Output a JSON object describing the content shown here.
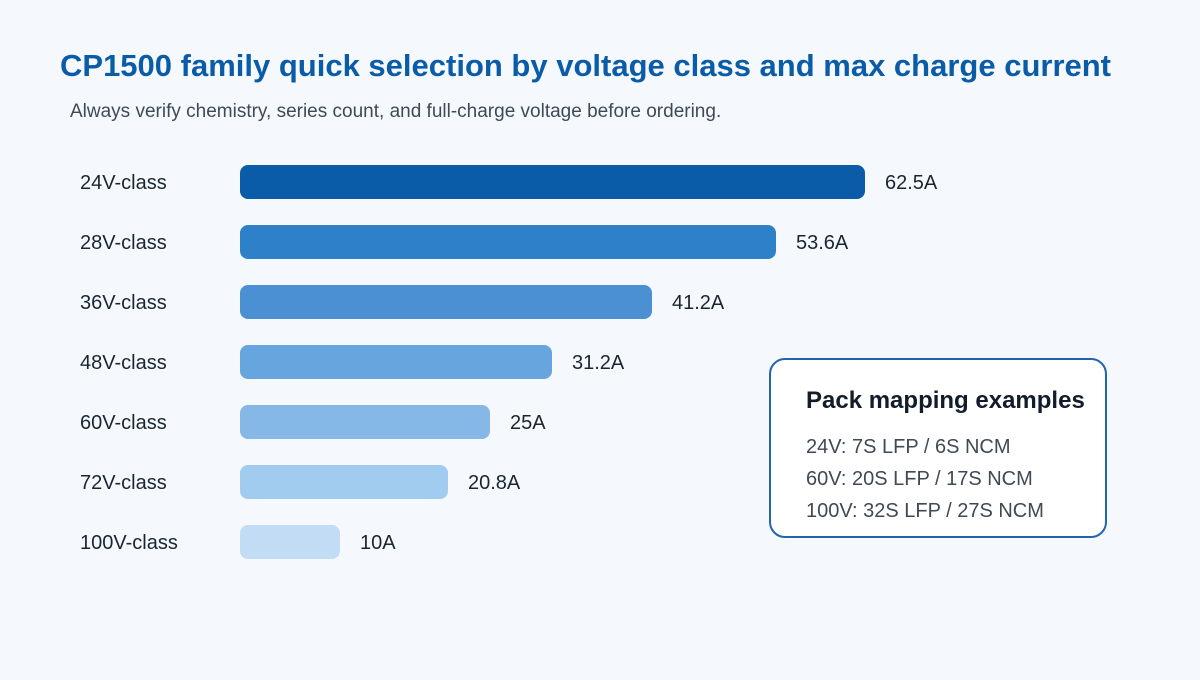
{
  "title": "CP1500 family quick selection by voltage class and max charge current",
  "subtitle": "Always verify chemistry, series count, and full-charge voltage before ordering.",
  "chart_data": {
    "type": "bar",
    "orientation": "horizontal",
    "categories": [
      "24V-class",
      "28V-class",
      "36V-class",
      "48V-class",
      "60V-class",
      "72V-class",
      "100V-class"
    ],
    "values": [
      62.5,
      53.6,
      41.2,
      31.2,
      25,
      20.8,
      10
    ],
    "value_labels": [
      "62.5A",
      "53.6A",
      "41.2A",
      "31.2A",
      "25A",
      "20.8A",
      "10A"
    ],
    "bar_colors": [
      "#0b5ca8",
      "#2e80c8",
      "#4a90d2",
      "#66a5de",
      "#85b8e6",
      "#a1cbef",
      "#c1dcf4"
    ],
    "xlim": [
      0,
      62.5
    ],
    "grid": false,
    "legend": "none"
  },
  "annotation": {
    "title": "Pack mapping examples",
    "lines": [
      "24V: 7S LFP / 6S NCM",
      "60V: 20S LFP / 17S NCM",
      "100V: 32S LFP / 27S NCM"
    ]
  },
  "colors": {
    "title": "#0b5ca8",
    "background": "#f5f9fe",
    "annotation_border": "#1f66ad"
  }
}
